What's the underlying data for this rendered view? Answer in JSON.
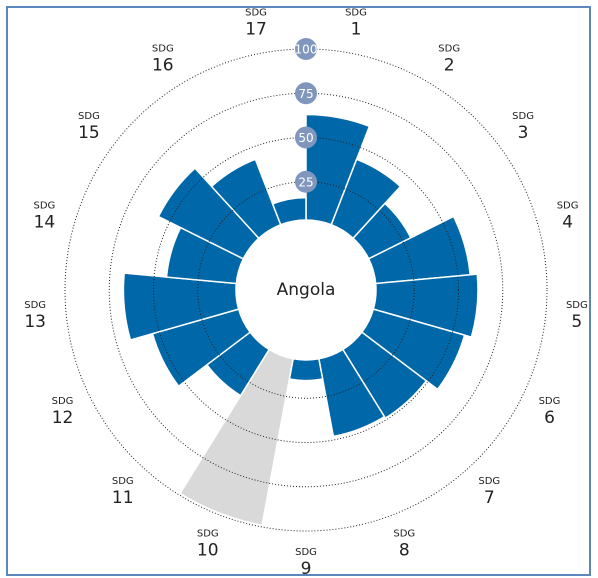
{
  "chart_data": {
    "type": "radial_bar",
    "center_label": "Angola",
    "label_prefix": "SDG",
    "categories": [
      "1",
      "2",
      "3",
      "4",
      "5",
      "6",
      "7",
      "8",
      "9",
      "10",
      "11",
      "12",
      "13",
      "14",
      "15",
      "16",
      "17"
    ],
    "values": [
      63,
      43,
      30,
      57,
      61,
      57,
      49,
      48,
      15,
      99,
      34,
      54,
      67,
      43,
      57,
      43,
      16
    ],
    "colors": [
      "#0068a8",
      "#0068a8",
      "#0068a8",
      "#0068a8",
      "#0068a8",
      "#0068a8",
      "#0068a8",
      "#0068a8",
      "#0068a8",
      "#d9d9d9",
      "#0068a8",
      "#0068a8",
      "#0068a8",
      "#0068a8",
      "#0068a8",
      "#0068a8",
      "#0068a8"
    ],
    "rlim": [
      0,
      100
    ],
    "rticks": [
      25,
      50,
      75,
      100
    ],
    "tick_badge_color": "#8096bd",
    "grid": true
  }
}
